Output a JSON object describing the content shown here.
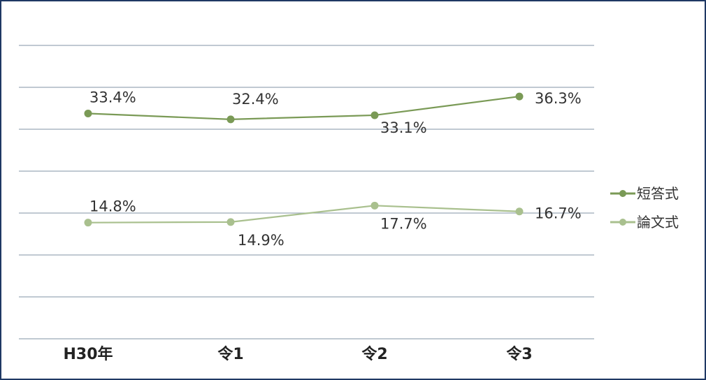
{
  "chart_data": {
    "type": "line",
    "categories": [
      "H30年",
      "令1",
      "令2",
      "令3"
    ],
    "series": [
      {
        "name": "短答式",
        "values": [
          33.4,
          32.4,
          33.1,
          36.3
        ],
        "labels": [
          "33.4%",
          "32.4%",
          "33.1%",
          "36.3%"
        ],
        "color": "#7a9a56"
      },
      {
        "name": "論文式",
        "values": [
          14.8,
          14.9,
          17.7,
          16.7
        ],
        "labels": [
          "14.8%",
          "14.9%",
          "17.7%",
          "16.7%"
        ],
        "color": "#a9c08e"
      }
    ],
    "ylim": [
      -5,
      45
    ],
    "grid": true,
    "legend": "right",
    "gridline_color": "#9aa9b8",
    "border_color": "#1f3864"
  }
}
